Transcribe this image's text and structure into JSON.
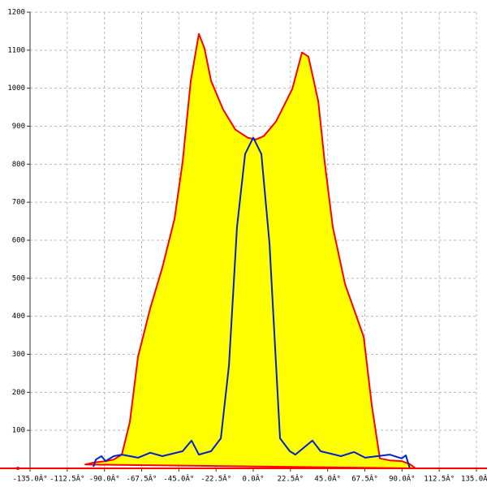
{
  "chart_data": {
    "type": "line",
    "xlim": [
      -135,
      135
    ],
    "ylim": [
      0,
      1200
    ],
    "xticks": [
      {
        "value": -135,
        "label": "-135.0Â°"
      },
      {
        "value": -112.5,
        "label": "-112.5Â°"
      },
      {
        "value": -90,
        "label": "-90.0Â°"
      },
      {
        "value": -67.5,
        "label": "-67.5Â°"
      },
      {
        "value": -45,
        "label": "-45.0Â°"
      },
      {
        "value": -22.5,
        "label": "-22.5Â°"
      },
      {
        "value": 0,
        "label": "0.0Â°"
      },
      {
        "value": 22.5,
        "label": "22.5Â°"
      },
      {
        "value": 45,
        "label": "45.0Â°"
      },
      {
        "value": 67.5,
        "label": "67.5Â°"
      },
      {
        "value": 90,
        "label": "90.0Â°"
      },
      {
        "value": 112.5,
        "label": "112.5Â°"
      },
      {
        "value": 135,
        "label": "135.0Â°"
      }
    ],
    "yticks": [
      100,
      200,
      300,
      400,
      500,
      600,
      700,
      800,
      900,
      1000,
      1100,
      1200
    ],
    "grid": true,
    "axis_color": "#ff0000",
    "series": [
      {
        "color": "#ff0000",
        "fill": "#ffff00",
        "x": [
          -101.6,
          -96.7,
          -89.3,
          -84.4,
          -79.5,
          -74.6,
          -69.7,
          -62.3,
          -55,
          -47.6,
          -42.7,
          -37.8,
          -32.9,
          -29.5,
          -25.5,
          -18.2,
          -10.8,
          -3.4,
          1.5,
          6.4,
          13.7,
          18.7,
          23.6,
          29.5,
          33.4,
          39.3,
          43.2,
          48.1,
          55.5,
          66.8,
          71.7,
          76.6,
          82.5,
          89.8,
          94.7,
          98.2
        ],
        "values": [
          10,
          15,
          19,
          23,
          36,
          122,
          293,
          421,
          528,
          656,
          806,
          1019,
          1143,
          1105,
          1019,
          944,
          891,
          870,
          865,
          874,
          912,
          955,
          998,
          1094,
          1083,
          966,
          806,
          635,
          485,
          346,
          165,
          26,
          21,
          19,
          11,
          0
        ]
      },
      {
        "color": "#0022cc",
        "x": [
          -96.7,
          -95.2,
          -91.8,
          -89.3,
          -84.4,
          -79.5,
          -69.7,
          -62.3,
          -55,
          -42.7,
          -37.3,
          -32.9,
          -25.5,
          -19.6,
          -14.7,
          -9.8,
          -4.9,
          0,
          4.9,
          9.8,
          16.2,
          22.1,
          25.5,
          35.8,
          40.7,
          53,
          60.9,
          67.7,
          82.5,
          89.8,
          92.3,
          94.7
        ],
        "values": [
          4,
          23,
          32,
          19,
          32,
          36,
          28,
          41,
          32,
          45,
          73,
          36,
          45,
          79,
          271,
          635,
          827,
          870,
          827,
          592,
          79,
          45,
          36,
          73,
          45,
          32,
          43,
          28,
          36,
          26,
          34,
          0
        ]
      }
    ]
  }
}
